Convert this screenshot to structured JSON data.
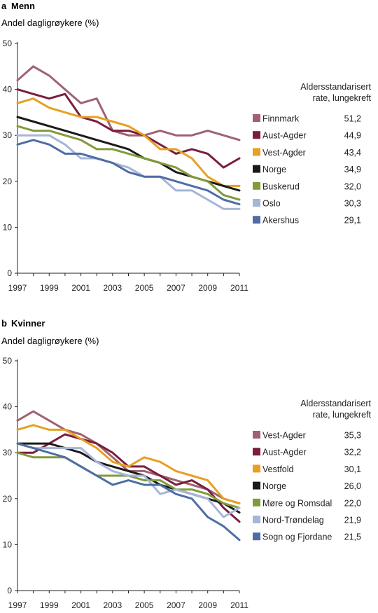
{
  "chart_data": [
    {
      "type": "line",
      "panel_letter": "a",
      "title": "Menn",
      "ylabel": "Andel dagligrøykere (%)",
      "ylim": [
        0,
        50
      ],
      "yticks": [
        0,
        10,
        20,
        30,
        40,
        50
      ],
      "x": [
        1997,
        1998,
        1999,
        2000,
        2001,
        2002,
        2003,
        2004,
        2005,
        2006,
        2007,
        2008,
        2009,
        2010,
        2011
      ],
      "xticks": [
        1997,
        1999,
        2001,
        2003,
        2005,
        2007,
        2009,
        2011
      ],
      "legend_title": [
        "Aldersstandarisert",
        "rate, lungekreft"
      ],
      "series": [
        {
          "name": "Finnmark",
          "rate": "51,2",
          "color": "#a06270",
          "values": [
            42,
            45,
            43,
            40,
            37,
            38,
            31,
            30,
            30,
            31,
            30,
            30,
            31,
            30,
            29
          ]
        },
        {
          "name": "Aust-Agder",
          "rate": "44,9",
          "color": "#7a1e3e",
          "values": [
            40,
            39,
            38,
            39,
            34,
            33,
            31,
            31,
            30,
            28,
            26,
            27,
            26,
            23,
            25
          ]
        },
        {
          "name": "Vest-Agder",
          "rate": "43,4",
          "color": "#e6a023",
          "values": [
            37,
            38,
            36,
            35,
            34,
            34,
            33,
            32,
            30,
            27,
            27,
            25,
            21,
            19,
            19
          ]
        },
        {
          "name": "Norge",
          "rate": "34,9",
          "color": "#1a1a1a",
          "values": [
            34,
            33,
            32,
            31,
            30,
            29,
            28,
            27,
            25,
            24,
            22,
            21,
            20,
            19,
            18
          ]
        },
        {
          "name": "Buskerud",
          "rate": "32,0",
          "color": "#829b3a",
          "values": [
            32,
            31,
            31,
            30,
            29,
            27,
            27,
            26,
            25,
            24,
            23,
            21,
            20,
            17,
            16
          ]
        },
        {
          "name": "Oslo",
          "rate": "30,3",
          "color": "#a6b5d8",
          "values": [
            30,
            30,
            30,
            28,
            25,
            25,
            24,
            23,
            21,
            21,
            18,
            18,
            16,
            14,
            14
          ]
        },
        {
          "name": "Akershus",
          "rate": "29,1",
          "color": "#4e6ea3",
          "values": [
            28,
            29,
            28,
            26,
            26,
            25,
            24,
            22,
            21,
            21,
            20,
            19,
            18,
            16,
            15
          ]
        }
      ]
    },
    {
      "type": "line",
      "panel_letter": "b",
      "title": "Kvinner",
      "ylabel": "Andel dagligrøykere (%)",
      "ylim": [
        0,
        50
      ],
      "yticks": [
        0,
        10,
        20,
        30,
        40,
        50
      ],
      "x": [
        1997,
        1998,
        1999,
        2000,
        2001,
        2002,
        2003,
        2004,
        2005,
        2006,
        2007,
        2008,
        2009,
        2010,
        2011
      ],
      "xticks": [
        1997,
        1999,
        2001,
        2003,
        2005,
        2007,
        2009,
        2011
      ],
      "legend_title": [
        "Aldersstandarisert",
        "rate, lungekreft"
      ],
      "series": [
        {
          "name": "Vest-Agder",
          "rate": "35,3",
          "color": "#a06270",
          "values": [
            37,
            39,
            37,
            35,
            34,
            32,
            29,
            26,
            26,
            25,
            24,
            23,
            22,
            20,
            19
          ]
        },
        {
          "name": "Aust-Agder",
          "rate": "32,2",
          "color": "#7a1e3e",
          "values": [
            30,
            30,
            32,
            34,
            33,
            32,
            30,
            27,
            27,
            25,
            23,
            24,
            22,
            18,
            15
          ]
        },
        {
          "name": "Vestfold",
          "rate": "30,1",
          "color": "#e6a023",
          "values": [
            35,
            36,
            35,
            35,
            33,
            31,
            28,
            27,
            29,
            28,
            26,
            25,
            24,
            20,
            19
          ]
        },
        {
          "name": "Norge",
          "rate": "26,0",
          "color": "#1a1a1a",
          "values": [
            32,
            32,
            32,
            31,
            30,
            28,
            27,
            26,
            25,
            23,
            22,
            21,
            20,
            19,
            17
          ]
        },
        {
          "name": "Møre og Romsdal",
          "rate": "22,0",
          "color": "#829b3a",
          "values": [
            30,
            29,
            29,
            29,
            27,
            25,
            25,
            25,
            24,
            24,
            22,
            22,
            21,
            19,
            18
          ]
        },
        {
          "name": "Nord-Trøndelag",
          "rate": "21,9",
          "color": "#a6b5d8",
          "values": [
            32,
            31,
            31,
            31,
            31,
            28,
            26,
            25,
            25,
            21,
            22,
            21,
            20,
            16,
            18
          ]
        },
        {
          "name": "Sogn og Fjordane",
          "rate": "21,5",
          "color": "#4e6ea3",
          "values": [
            32,
            31,
            30,
            29,
            27,
            25,
            23,
            24,
            23,
            23,
            21,
            20,
            16,
            14,
            11
          ]
        }
      ]
    }
  ]
}
